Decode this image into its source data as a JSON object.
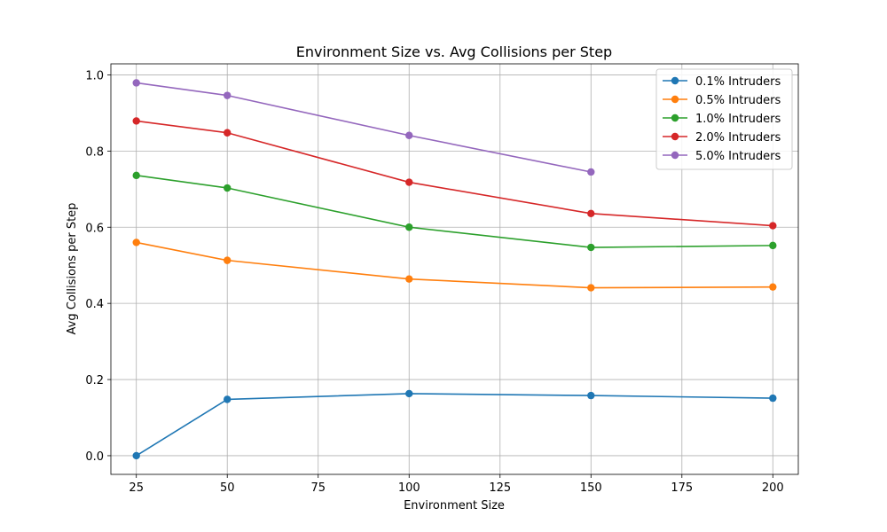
{
  "chart_data": {
    "type": "line",
    "title": "Environment Size vs. Avg Collisions per Step",
    "xlabel": "Environment Size",
    "ylabel": "Avg Collisions per Step",
    "xlim": [
      18,
      207
    ],
    "ylim": [
      -0.049,
      1.029
    ],
    "xticks": [
      25,
      50,
      75,
      100,
      125,
      150,
      175,
      200
    ],
    "xtick_labels": [
      "25",
      "50",
      "75",
      "100",
      "125",
      "150",
      "175",
      "200"
    ],
    "yticks": [
      0.0,
      0.2,
      0.4,
      0.6,
      0.8,
      1.0
    ],
    "ytick_labels": [
      "0.0",
      "0.2",
      "0.4",
      "0.6",
      "0.8",
      "1.0"
    ],
    "grid": true,
    "legend_position": "top-right",
    "series": [
      {
        "name": "0.1% Intruders",
        "color": "#1f77b4",
        "x": [
          25,
          50,
          100,
          150,
          200
        ],
        "y": [
          0.0,
          0.148,
          0.163,
          0.158,
          0.151
        ]
      },
      {
        "name": "0.5% Intruders",
        "color": "#ff7f0e",
        "x": [
          25,
          50,
          100,
          150,
          200
        ],
        "y": [
          0.56,
          0.513,
          0.464,
          0.441,
          0.443
        ]
      },
      {
        "name": "1.0% Intruders",
        "color": "#2ca02c",
        "x": [
          25,
          50,
          100,
          150,
          200
        ],
        "y": [
          0.736,
          0.703,
          0.6,
          0.547,
          0.552
        ]
      },
      {
        "name": "2.0% Intruders",
        "color": "#d62728",
        "x": [
          25,
          50,
          100,
          150,
          200
        ],
        "y": [
          0.879,
          0.848,
          0.718,
          0.636,
          0.604
        ]
      },
      {
        "name": "5.0% Intruders",
        "color": "#9467bd",
        "x": [
          25,
          50,
          100,
          150
        ],
        "y": [
          0.979,
          0.946,
          0.841,
          0.745
        ]
      }
    ]
  }
}
